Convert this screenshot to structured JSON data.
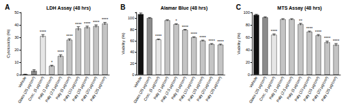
{
  "chart_data": [
    {
      "type": "bar",
      "panel": "A",
      "title": "LDH Assay (48 hrs)",
      "ylabel": "Cytotoxicity (%)",
      "categories": [
        "Vehicle",
        "Glass (25 μg/cm²)",
        "Croc. (5 μg/cm²)",
        "Paly (1 μg/cm²)",
        "Paly (2.5 μg/cm²)",
        "Paly (5 μg/cm²)",
        "Paly (10 μg/cm²)",
        "Paly (15 μg/cm²)",
        "Paly (20 μg/cm²)",
        "Paly (25 μg/cm²)"
      ],
      "values": [
        0.2,
        3,
        31,
        7,
        15,
        28,
        37,
        38,
        39,
        41
      ],
      "errors": [
        0.2,
        1,
        1.2,
        0.6,
        1,
        0.8,
        1.5,
        1,
        1,
        1
      ],
      "significance": [
        null,
        null,
        "****",
        "*",
        "****",
        "****",
        "****",
        "****",
        "****",
        "****"
      ],
      "colors": [
        "#111111",
        "#8c8c8c",
        "#e6e6e6",
        "#c4c4c4",
        "#c4c4c4",
        "#c4c4c4",
        "#c4c4c4",
        "#c4c4c4",
        "#c4c4c4",
        "#c4c4c4"
      ],
      "ylim": [
        0,
        50
      ],
      "yticks": [
        0,
        10,
        20,
        30,
        40,
        50
      ],
      "grid": false
    },
    {
      "type": "bar",
      "panel": "B",
      "title": "Alamar Blue (48 hrs)",
      "ylabel": "Viability (%)",
      "categories": [
        "Vehicle",
        "Glass (25 μg/cm²)",
        "Croc. (5 μg/cm²)",
        "Paly (1 μg/cm²)",
        "Paly (2.5 μg/cm²)",
        "Paly (5 μg/cm²)",
        "Paly (10 μg/cm²)",
        "Paly (15 μg/cm²)",
        "Paly (20 μg/cm²)",
        "Paly (25 μg/cm²)"
      ],
      "values": [
        107,
        100,
        62,
        96,
        89,
        79,
        66,
        60,
        54,
        53
      ],
      "errors": [
        2,
        1,
        1,
        1,
        1,
        1,
        1,
        1,
        1,
        1
      ],
      "significance": [
        null,
        null,
        "****",
        null,
        "*",
        "****",
        "****",
        "****",
        "****",
        "****"
      ],
      "colors": [
        "#111111",
        "#8c8c8c",
        "#e6e6e6",
        "#c4c4c4",
        "#c4c4c4",
        "#c4c4c4",
        "#c4c4c4",
        "#c4c4c4",
        "#c4c4c4",
        "#c4c4c4"
      ],
      "ylim": [
        0,
        110
      ],
      "yticks": [
        0,
        20,
        40,
        60,
        80,
        100
      ],
      "grid": false
    },
    {
      "type": "bar",
      "panel": "C",
      "title": "MTS Assay (48 hrs)",
      "ylabel": "Viability (%)",
      "categories": [
        "Vehicle",
        "Glass (25 μg/cm²)",
        "Croc. (5 μg/cm²)",
        "Paly (1 μg/cm²)",
        "Paly (2.5 μg/cm²)",
        "Paly (5 μg/cm²)",
        "Paly (10 μg/cm²)",
        "Paly (15 μg/cm²)",
        "Paly (20 μg/cm²)",
        "Paly (25 μg/cm²)"
      ],
      "values": [
        96,
        92,
        64,
        89,
        89,
        81,
        69,
        63,
        52,
        48
      ],
      "errors": [
        1,
        1,
        1.5,
        1,
        1,
        1.5,
        1,
        1.5,
        2,
        2
      ],
      "significance": [
        null,
        null,
        "****",
        null,
        null,
        "**",
        "****",
        "****",
        "****",
        "****"
      ],
      "colors": [
        "#111111",
        "#8c8c8c",
        "#e6e6e6",
        "#c4c4c4",
        "#c4c4c4",
        "#c4c4c4",
        "#c4c4c4",
        "#c4c4c4",
        "#c4c4c4",
        "#c4c4c4"
      ],
      "ylim": [
        0,
        100
      ],
      "yticks": [
        0,
        20,
        40,
        60,
        80,
        100
      ],
      "grid": false
    }
  ]
}
